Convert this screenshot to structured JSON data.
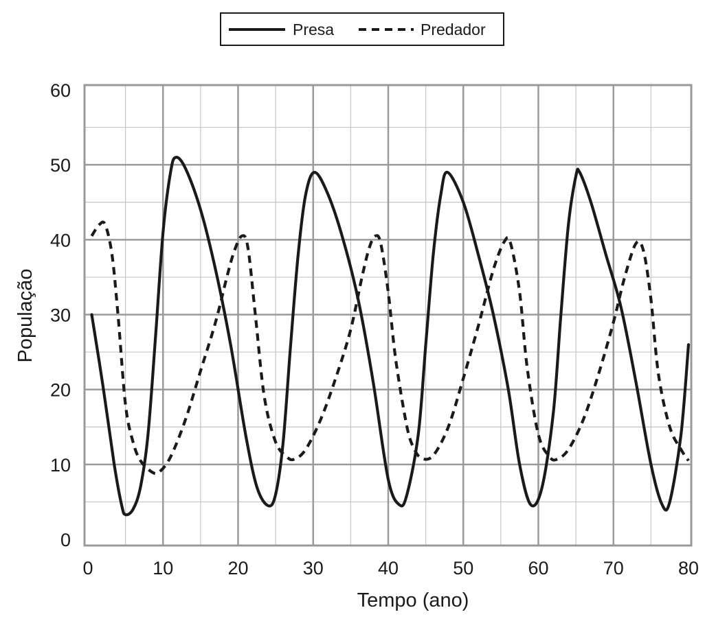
{
  "chart_data": {
    "type": "line",
    "xlabel": "Tempo (ano)",
    "ylabel": "População",
    "xlim": [
      0,
      80
    ],
    "ylim": [
      0,
      60
    ],
    "x_ticks": [
      0,
      10,
      20,
      30,
      40,
      50,
      60,
      70,
      80
    ],
    "y_ticks": [
      0,
      10,
      20,
      30,
      40,
      50,
      60
    ],
    "grid": true,
    "legend_position": "top-center",
    "series": [
      {
        "name": "Presa",
        "line_style": "solid",
        "color": "#1a1a1a",
        "points": [
          [
            0.5,
            30
          ],
          [
            2,
            20.5
          ],
          [
            3.5,
            10
          ],
          [
            4.5,
            4.5
          ],
          [
            5,
            3.3
          ],
          [
            6,
            4
          ],
          [
            7,
            7
          ],
          [
            8,
            14
          ],
          [
            9,
            27
          ],
          [
            10,
            41
          ],
          [
            11,
            49
          ],
          [
            11.7,
            51
          ],
          [
            13,
            49.5
          ],
          [
            15,
            44
          ],
          [
            17,
            36
          ],
          [
            19,
            26
          ],
          [
            21,
            14
          ],
          [
            22.5,
            7
          ],
          [
            24,
            4.5
          ],
          [
            25,
            6
          ],
          [
            26,
            13
          ],
          [
            27,
            26
          ],
          [
            28,
            38
          ],
          [
            29,
            46
          ],
          [
            30.2,
            49
          ],
          [
            32,
            46
          ],
          [
            34,
            40
          ],
          [
            36,
            32
          ],
          [
            38,
            21
          ],
          [
            40,
            8
          ],
          [
            41.5,
            4.6
          ],
          [
            42.5,
            6
          ],
          [
            44,
            14
          ],
          [
            45,
            26
          ],
          [
            46,
            38
          ],
          [
            47,
            46
          ],
          [
            47.9,
            49
          ],
          [
            50,
            45
          ],
          [
            52,
            38
          ],
          [
            54,
            30
          ],
          [
            56,
            20
          ],
          [
            57.5,
            10
          ],
          [
            59,
            4.6
          ],
          [
            60.5,
            7
          ],
          [
            62,
            17
          ],
          [
            63,
            30
          ],
          [
            64,
            42
          ],
          [
            65,
            48.5
          ],
          [
            65.5,
            49
          ],
          [
            67,
            45
          ],
          [
            69,
            38
          ],
          [
            71,
            31
          ],
          [
            73,
            21
          ],
          [
            75,
            10
          ],
          [
            76.5,
            4.6
          ],
          [
            77.5,
            5
          ],
          [
            79,
            14
          ],
          [
            80,
            26
          ]
        ]
      },
      {
        "name": "Predador",
        "line_style": "dashed",
        "color": "#1a1a1a",
        "points": [
          [
            0.5,
            40.5
          ],
          [
            1.5,
            42
          ],
          [
            2.3,
            42
          ],
          [
            3.2,
            38
          ],
          [
            4,
            30
          ],
          [
            5,
            18
          ],
          [
            6,
            13
          ],
          [
            7,
            10.5
          ],
          [
            8.5,
            9
          ],
          [
            9.5,
            9
          ],
          [
            11,
            11
          ],
          [
            13,
            16
          ],
          [
            15,
            22.5
          ],
          [
            17,
            29
          ],
          [
            18.5,
            35
          ],
          [
            19.5,
            38.5
          ],
          [
            20.5,
            40.5
          ],
          [
            21.3,
            39
          ],
          [
            22.3,
            30
          ],
          [
            23.5,
            19
          ],
          [
            25,
            13
          ],
          [
            26.5,
            11
          ],
          [
            27.5,
            10.7
          ],
          [
            29,
            12
          ],
          [
            31,
            16
          ],
          [
            33,
            21.5
          ],
          [
            35,
            28
          ],
          [
            36.5,
            35
          ],
          [
            37.5,
            39
          ],
          [
            38.3,
            40.5
          ],
          [
            39,
            39.5
          ],
          [
            40,
            33
          ],
          [
            41,
            24
          ],
          [
            42.5,
            15
          ],
          [
            43.5,
            12
          ],
          [
            44.5,
            10.8
          ],
          [
            46,
            11.2
          ],
          [
            48,
            15
          ],
          [
            50,
            21.5
          ],
          [
            52,
            28.5
          ],
          [
            54,
            36
          ],
          [
            55.5,
            39.8
          ],
          [
            56.3,
            39.5
          ],
          [
            57.5,
            33
          ],
          [
            58.5,
            23
          ],
          [
            60,
            14
          ],
          [
            61.5,
            11
          ],
          [
            62.5,
            10.7
          ],
          [
            64,
            12
          ],
          [
            66,
            16
          ],
          [
            68,
            22
          ],
          [
            70,
            29
          ],
          [
            71.5,
            35
          ],
          [
            73,
            39.5
          ],
          [
            74,
            38.5
          ],
          [
            75,
            32
          ],
          [
            76,
            22
          ],
          [
            77.5,
            15
          ],
          [
            79,
            12
          ],
          [
            80,
            10.5
          ]
        ]
      }
    ]
  }
}
